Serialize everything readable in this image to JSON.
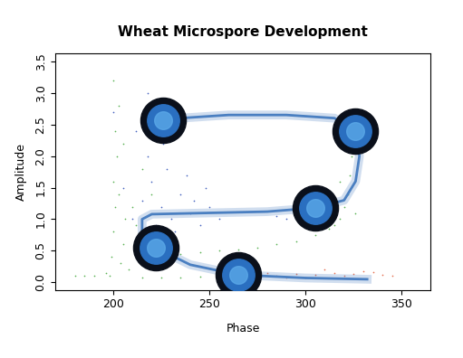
{
  "chart_data": {
    "type": "scatter",
    "title": "Wheat Microspore Development",
    "x_label": "Phase",
    "y_label": "Amplitude",
    "xlim": [
      170,
      365
    ],
    "xticks": [
      200,
      250,
      300,
      350
    ],
    "ylim": [
      -0.12,
      3.62
    ],
    "yticks": [
      {
        "value": 0,
        "label": "0.0"
      },
      {
        "value": 0.5,
        "label": "0.5"
      },
      {
        "value": 1,
        "label": "1.0"
      },
      {
        "value": 1.5,
        "label": "1.5"
      },
      {
        "value": 2,
        "label": "2.0"
      },
      {
        "value": 2.5,
        "label": "2.5"
      },
      {
        "value": 3,
        "label": "3.0"
      },
      {
        "value": 3.5,
        "label": "3.5"
      }
    ],
    "grid": false,
    "series": [
      {
        "type": "scatter",
        "color": "#33a02c",
        "marker": "point",
        "x": [
          198,
          199,
          200,
          201,
          200,
          202,
          201,
          203,
          200,
          204,
          205,
          206,
          203,
          208,
          196,
          190,
          185,
          180,
          215,
          225,
          235,
          245,
          215,
          225,
          235,
          245,
          255,
          265,
          275,
          285,
          295,
          305,
          312,
          318,
          320,
          322,
          323,
          324,
          325,
          320,
          318,
          326,
          315,
          310,
          300,
          210,
          215,
          220,
          205,
          212
        ],
        "values": [
          0.1,
          0.4,
          0.8,
          1.2,
          1.6,
          2.0,
          2.4,
          2.8,
          3.2,
          0.3,
          0.6,
          1.0,
          1.4,
          0.2,
          0.15,
          0.1,
          0.1,
          0.1,
          0.08,
          0.08,
          0.08,
          0.09,
          0.6,
          0.45,
          0.45,
          0.48,
          0.5,
          0.52,
          0.55,
          0.6,
          0.65,
          0.75,
          0.85,
          1.0,
          1.2,
          1.4,
          1.7,
          2.0,
          2.3,
          2.6,
          1.6,
          1.1,
          0.9,
          1.3,
          1.0,
          1.2,
          1.8,
          1.4,
          2.2,
          0.9
        ]
      },
      {
        "type": "scatter",
        "color": "#1a3fb0",
        "marker": "point",
        "x": [
          210,
          215,
          220,
          225,
          230,
          235,
          240,
          245,
          250,
          228,
          218,
          205,
          232,
          212,
          238,
          255,
          242,
          222,
          290,
          295,
          300,
          305,
          285,
          310,
          218,
          200,
          226,
          248
        ],
        "values": [
          1.0,
          1.3,
          1.6,
          1.2,
          1.0,
          1.4,
          1.1,
          0.9,
          1.2,
          1.8,
          2.0,
          1.5,
          0.8,
          2.4,
          1.7,
          1.0,
          1.3,
          0.9,
          1.0,
          1.2,
          1.1,
          0.95,
          1.05,
          1.25,
          3.0,
          2.7,
          2.2,
          1.5
        ]
      },
      {
        "type": "scatter",
        "color": "#e0502a",
        "marker": "point",
        "x": [
          255,
          265,
          275,
          285,
          295,
          305,
          315,
          325,
          335,
          340,
          345,
          270,
          300,
          320,
          330,
          310,
          290,
          280
        ],
        "values": [
          0.08,
          0.1,
          0.12,
          0.1,
          0.13,
          0.12,
          0.15,
          0.14,
          0.16,
          0.12,
          0.1,
          0.06,
          0.08,
          0.1,
          0.18,
          0.2,
          0.07,
          0.15
        ]
      },
      {
        "type": "line",
        "color": "#4a7fc1",
        "line_style": "solid",
        "x": [
          332,
          300,
          265,
          240,
          222,
          215,
          215,
          220,
          250,
          280,
          305,
          320,
          326,
          328,
          326,
          315,
          290,
          260,
          235,
          226
        ],
        "values": [
          0.05,
          0.07,
          0.12,
          0.28,
          0.55,
          0.8,
          1.0,
          1.08,
          1.1,
          1.12,
          1.18,
          1.3,
          1.6,
          2.0,
          2.4,
          2.6,
          2.65,
          2.65,
          2.6,
          2.57
        ]
      }
    ]
  }
}
